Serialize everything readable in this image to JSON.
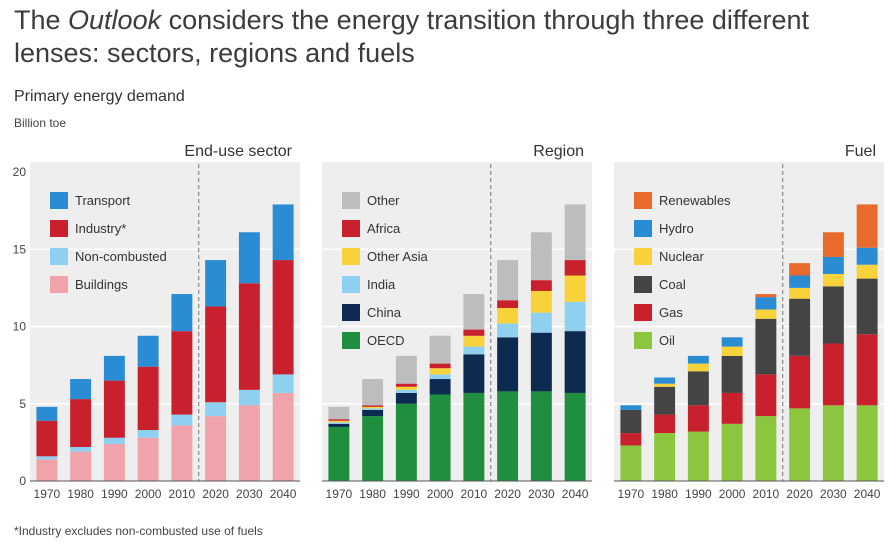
{
  "title_parts": {
    "pre": "The ",
    "italic": "Outlook",
    "post": " considers the energy transition through three different lenses: sectors, regions and fuels"
  },
  "subtitle": "Primary energy demand",
  "unit": "Billion toe",
  "footnote": "*Industry excludes non-combusted use of fuels",
  "chart_data": [
    {
      "type": "bar",
      "stacked": true,
      "title": "End-use sector",
      "categories": [
        "1970",
        "1980",
        "1990",
        "2000",
        "2010",
        "2020",
        "2030",
        "2040"
      ],
      "ylim": [
        0,
        20
      ],
      "yticks": [
        "0",
        "5",
        "10",
        "15",
        "20"
      ],
      "divider_after": "2010",
      "legend_placement": "top-left",
      "series": [
        {
          "name": "Buildings",
          "color": "#f0a3aa",
          "values": [
            1.4,
            1.9,
            2.4,
            2.8,
            3.6,
            4.2,
            4.9,
            5.7
          ]
        },
        {
          "name": "Non-combusted",
          "color": "#8fd0f0",
          "values": [
            0.2,
            0.3,
            0.4,
            0.5,
            0.7,
            0.9,
            1.0,
            1.2
          ]
        },
        {
          "name": "Industry*",
          "color": "#c8202d",
          "values": [
            2.3,
            3.1,
            3.7,
            4.1,
            5.4,
            6.2,
            6.9,
            7.4
          ]
        },
        {
          "name": "Transport",
          "color": "#2a8dd4",
          "values": [
            0.9,
            1.3,
            1.6,
            2.0,
            2.4,
            3.0,
            3.3,
            3.6
          ]
        }
      ]
    },
    {
      "type": "bar",
      "stacked": true,
      "title": "Region",
      "categories": [
        "1970",
        "1980",
        "1990",
        "2000",
        "2010",
        "2020",
        "2030",
        "2040"
      ],
      "ylim": [
        0,
        20
      ],
      "divider_after": "2010",
      "legend_placement": "top-left",
      "series": [
        {
          "name": "OECD",
          "color": "#1f8f3f",
          "values": [
            3.5,
            4.2,
            5.0,
            5.6,
            5.7,
            5.8,
            5.8,
            5.7
          ]
        },
        {
          "name": "China",
          "color": "#0d2a50",
          "values": [
            0.2,
            0.4,
            0.7,
            1.0,
            2.5,
            3.5,
            3.8,
            4.0
          ]
        },
        {
          "name": "India",
          "color": "#8fd0f0",
          "values": [
            0.1,
            0.1,
            0.2,
            0.3,
            0.5,
            0.9,
            1.3,
            1.9
          ]
        },
        {
          "name": "Other Asia",
          "color": "#f7d23a",
          "values": [
            0.1,
            0.1,
            0.2,
            0.4,
            0.7,
            1.0,
            1.4,
            1.7
          ]
        },
        {
          "name": "Africa",
          "color": "#c8202d",
          "values": [
            0.1,
            0.1,
            0.2,
            0.3,
            0.4,
            0.5,
            0.7,
            1.0
          ]
        },
        {
          "name": "Other",
          "color": "#bdbdbd",
          "values": [
            0.8,
            1.7,
            1.8,
            1.8,
            2.3,
            2.6,
            3.1,
            3.6
          ]
        }
      ]
    },
    {
      "type": "bar",
      "stacked": true,
      "title": "Fuel",
      "categories": [
        "1970",
        "1980",
        "1990",
        "2000",
        "2010",
        "2020",
        "2030",
        "2040"
      ],
      "ylim": [
        0,
        20
      ],
      "divider_after": "2010",
      "legend_placement": "top-left",
      "series": [
        {
          "name": "Oil",
          "color": "#8cc63f",
          "values": [
            2.3,
            3.1,
            3.2,
            3.7,
            4.2,
            4.7,
            4.9,
            4.9
          ]
        },
        {
          "name": "Gas",
          "color": "#c8202d",
          "values": [
            0.8,
            1.2,
            1.7,
            2.0,
            2.7,
            3.4,
            4.0,
            4.6
          ]
        },
        {
          "name": "Coal",
          "color": "#444444",
          "values": [
            1.5,
            1.8,
            2.2,
            2.4,
            3.6,
            3.7,
            3.7,
            3.6
          ]
        },
        {
          "name": "Nuclear",
          "color": "#f7d23a",
          "values": [
            0.0,
            0.2,
            0.5,
            0.6,
            0.6,
            0.7,
            0.8,
            0.9
          ]
        },
        {
          "name": "Hydro",
          "color": "#2a8dd4",
          "values": [
            0.3,
            0.4,
            0.5,
            0.6,
            0.8,
            0.8,
            1.1,
            1.1
          ]
        },
        {
          "name": "Renewables",
          "color": "#e86a2c",
          "values": [
            0.0,
            0.0,
            0.0,
            0.0,
            0.2,
            0.8,
            1.6,
            2.8
          ]
        }
      ]
    }
  ]
}
